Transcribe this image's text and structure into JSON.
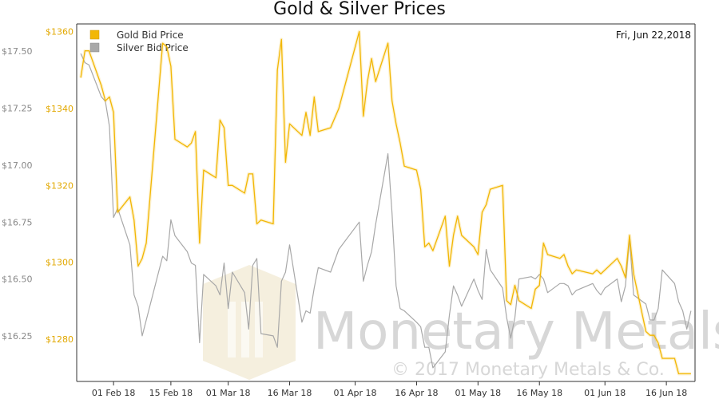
{
  "chart_data": {
    "type": "line",
    "title": "Gold & Silver Prices",
    "date_label": "Fri, Jun 22,2018",
    "legend": [
      "Gold Bid Price",
      "Silver Bid Price"
    ],
    "legend_position": "top-left",
    "grid": false,
    "x_ticks": [
      "01 Feb 18",
      "15 Feb 18",
      "01 Mar 18",
      "16 Mar 18",
      "01 Apr 18",
      "16 Apr 18",
      "01 May 18",
      "16 May 18",
      "01 Jun 18",
      "16 Jun 18"
    ],
    "silver_axis": {
      "ticks": [
        "$17.50",
        "$17.25",
        "$17.00",
        "$16.75",
        "$16.50",
        "$16.25"
      ],
      "ylim": [
        16.05,
        17.62
      ]
    },
    "gold_axis": {
      "ticks": [
        "$1360",
        "$1340",
        "$1320",
        "$1300",
        "$1280"
      ],
      "ylim": [
        1269,
        1362
      ]
    },
    "colors": {
      "gold": "#f2b705",
      "silver": "#a8a8a8",
      "axis": "#333333"
    },
    "series": [
      {
        "name": "Gold Bid Price",
        "x": [
          "2018-01-24",
          "2018-01-25",
          "2018-01-26",
          "2018-01-29",
          "2018-01-30",
          "2018-01-31",
          "2018-02-01",
          "2018-02-02",
          "2018-02-05",
          "2018-02-06",
          "2018-02-07",
          "2018-02-08",
          "2018-02-09",
          "2018-02-13",
          "2018-02-14",
          "2018-02-15",
          "2018-02-16",
          "2018-02-19",
          "2018-02-20",
          "2018-02-21",
          "2018-02-22",
          "2018-02-23",
          "2018-02-26",
          "2018-02-27",
          "2018-02-28",
          "2018-03-01",
          "2018-03-02",
          "2018-03-05",
          "2018-03-06",
          "2018-03-07",
          "2018-03-08",
          "2018-03-09",
          "2018-03-12",
          "2018-03-13",
          "2018-03-14",
          "2018-03-15",
          "2018-03-16",
          "2018-03-19",
          "2018-03-20",
          "2018-03-21",
          "2018-03-22",
          "2018-03-23",
          "2018-03-26",
          "2018-03-28",
          "2018-04-02",
          "2018-04-03",
          "2018-04-04",
          "2018-04-05",
          "2018-04-06",
          "2018-04-09",
          "2018-04-10",
          "2018-04-11",
          "2018-04-12",
          "2018-04-13",
          "2018-04-16",
          "2018-04-17",
          "2018-04-18",
          "2018-04-19",
          "2018-04-20",
          "2018-04-23",
          "2018-04-24",
          "2018-04-25",
          "2018-04-26",
          "2018-04-27",
          "2018-04-30",
          "2018-05-01",
          "2018-05-02",
          "2018-05-03",
          "2018-05-04",
          "2018-05-07",
          "2018-05-08",
          "2018-05-09",
          "2018-05-10",
          "2018-05-11",
          "2018-05-14",
          "2018-05-15",
          "2018-05-16",
          "2018-05-17",
          "2018-05-18",
          "2018-05-21",
          "2018-05-22",
          "2018-05-23",
          "2018-05-24",
          "2018-05-25",
          "2018-05-29",
          "2018-05-30",
          "2018-05-31",
          "2018-06-01",
          "2018-06-04",
          "2018-06-05",
          "2018-06-06",
          "2018-06-07",
          "2018-06-08",
          "2018-06-11",
          "2018-06-12",
          "2018-06-13",
          "2018-06-14",
          "2018-06-15",
          "2018-06-18",
          "2018-06-19",
          "2018-06-20",
          "2018-06-21",
          "2018-06-22"
        ],
        "values": [
          1348,
          1355,
          1355,
          1346,
          1342,
          1343,
          1339,
          1313,
          1317,
          1311,
          1299,
          1301,
          1305,
          1357,
          1356,
          1351,
          1332,
          1330,
          1331,
          1334,
          1305,
          1324,
          1322,
          1337,
          1335,
          1320,
          1320,
          1318,
          1323,
          1323,
          1310,
          1311,
          1310,
          1350,
          1358,
          1326,
          1336,
          1333,
          1339,
          1333,
          1343,
          1334,
          1335,
          1340,
          1360,
          1338,
          1347,
          1353,
          1347,
          1357,
          1342,
          1336,
          1331,
          1325,
          1324,
          1319,
          1304,
          1305,
          1303,
          1312,
          1299,
          1307,
          1312,
          1307,
          1304,
          1302,
          1313,
          1315,
          1319,
          1320,
          1290,
          1289,
          1294,
          1290,
          1288,
          1293,
          1294,
          1305,
          1302,
          1301,
          1302,
          1299,
          1297,
          1298,
          1297,
          1298,
          1297,
          1298,
          1301,
          1299,
          1296,
          1307,
          1297,
          1282,
          1281,
          1281,
          1279,
          1275,
          1275,
          1271,
          1271,
          1271,
          1271
        ]
      },
      {
        "name": "Silver Bid Price",
        "x": [
          "2018-01-24",
          "2018-01-25",
          "2018-01-26",
          "2018-01-29",
          "2018-01-30",
          "2018-01-31",
          "2018-02-01",
          "2018-02-02",
          "2018-02-05",
          "2018-02-06",
          "2018-02-07",
          "2018-02-08",
          "2018-02-09",
          "2018-02-13",
          "2018-02-14",
          "2018-02-15",
          "2018-02-16",
          "2018-02-19",
          "2018-02-20",
          "2018-02-21",
          "2018-02-22",
          "2018-02-23",
          "2018-02-26",
          "2018-02-27",
          "2018-02-28",
          "2018-03-01",
          "2018-03-02",
          "2018-03-05",
          "2018-03-06",
          "2018-03-07",
          "2018-03-08",
          "2018-03-09",
          "2018-03-12",
          "2018-03-13",
          "2018-03-14",
          "2018-03-15",
          "2018-03-16",
          "2018-03-19",
          "2018-03-20",
          "2018-03-21",
          "2018-03-22",
          "2018-03-23",
          "2018-03-26",
          "2018-03-28",
          "2018-04-02",
          "2018-04-03",
          "2018-04-04",
          "2018-04-05",
          "2018-04-06",
          "2018-04-09",
          "2018-04-10",
          "2018-04-11",
          "2018-04-12",
          "2018-04-13",
          "2018-04-16",
          "2018-04-17",
          "2018-04-18",
          "2018-04-19",
          "2018-04-20",
          "2018-04-23",
          "2018-04-24",
          "2018-04-25",
          "2018-04-26",
          "2018-04-27",
          "2018-04-30",
          "2018-05-01",
          "2018-05-02",
          "2018-05-03",
          "2018-05-04",
          "2018-05-07",
          "2018-05-08",
          "2018-05-09",
          "2018-05-10",
          "2018-05-11",
          "2018-05-14",
          "2018-05-15",
          "2018-05-16",
          "2018-05-17",
          "2018-05-18",
          "2018-05-21",
          "2018-05-22",
          "2018-05-23",
          "2018-05-24",
          "2018-05-25",
          "2018-05-29",
          "2018-05-30",
          "2018-05-31",
          "2018-06-01",
          "2018-06-04",
          "2018-06-05",
          "2018-06-06",
          "2018-06-07",
          "2018-06-08",
          "2018-06-11",
          "2018-06-12",
          "2018-06-13",
          "2018-06-14",
          "2018-06-15",
          "2018-06-18",
          "2018-06-19",
          "2018-06-20",
          "2018-06-21",
          "2018-06-22"
        ],
        "values": [
          17.49,
          17.45,
          17.44,
          17.3,
          17.28,
          17.17,
          16.77,
          16.81,
          16.65,
          16.43,
          16.38,
          16.25,
          16.32,
          16.6,
          16.58,
          16.76,
          16.69,
          16.62,
          16.57,
          16.56,
          16.22,
          16.52,
          16.47,
          16.43,
          16.57,
          16.37,
          16.53,
          16.44,
          16.28,
          16.56,
          16.59,
          16.26,
          16.25,
          16.2,
          16.49,
          16.53,
          16.65,
          16.31,
          16.36,
          16.35,
          16.46,
          16.55,
          16.53,
          16.63,
          16.75,
          16.49,
          16.56,
          16.62,
          16.74,
          17.05,
          16.79,
          16.47,
          16.37,
          16.36,
          16.31,
          16.29,
          16.2,
          16.2,
          16.11,
          16.18,
          16.34,
          16.47,
          16.43,
          16.38,
          16.5,
          16.45,
          16.41,
          16.63,
          16.54,
          16.46,
          16.33,
          16.24,
          16.33,
          16.5,
          16.51,
          16.5,
          16.52,
          16.5,
          16.44,
          16.48,
          16.48,
          16.47,
          16.43,
          16.45,
          16.48,
          16.45,
          16.43,
          16.46,
          16.5,
          16.4,
          16.47,
          16.68,
          16.43,
          16.39,
          16.32,
          16.32,
          16.37,
          16.54,
          16.48,
          16.4,
          16.36,
          16.28,
          16.36
        ]
      }
    ]
  }
}
